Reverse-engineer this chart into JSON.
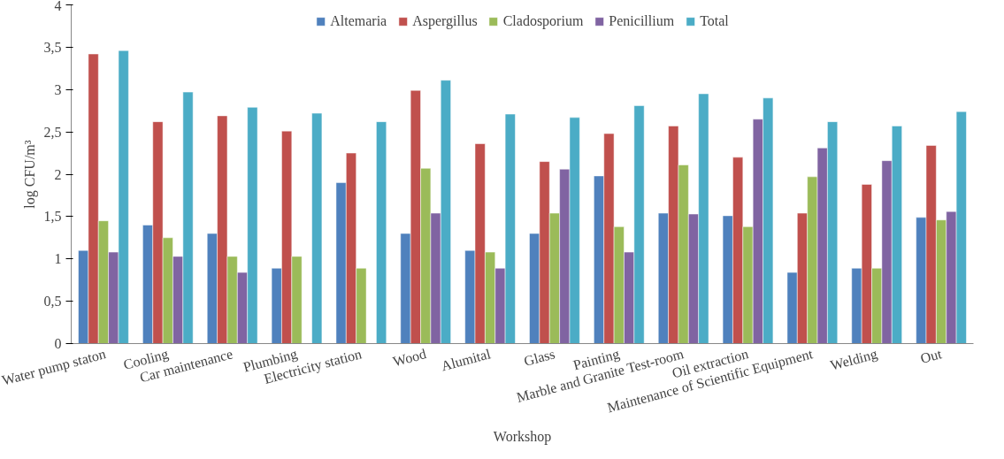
{
  "chart_data": {
    "type": "bar",
    "xlabel": "Workshop",
    "ylabel": "log CFU/m³",
    "categories": [
      "Water pump staton",
      "Cooling",
      "Car maintenance",
      "Plumbing",
      "Electricity station",
      "Wood",
      "Alumital",
      "Glass",
      "Painting",
      "Marble and Granite Test-room",
      "Oil extraction",
      "Maintenance of Scientific Equipment",
      "Welding",
      "Out"
    ],
    "series": [
      {
        "name": "Altemaria",
        "color": "#4f81bd",
        "values": [
          1.1,
          1.4,
          1.3,
          0.89,
          1.9,
          1.3,
          1.1,
          1.3,
          1.98,
          1.54,
          1.51,
          0.84,
          0.89,
          1.49
        ]
      },
      {
        "name": "Aspergillus",
        "color": "#c0504d",
        "values": [
          3.42,
          2.62,
          2.69,
          2.51,
          2.25,
          2.99,
          2.36,
          2.15,
          2.48,
          2.57,
          2.2,
          1.54,
          1.88,
          2.34
        ]
      },
      {
        "name": "Cladosporium",
        "color": "#9bbb59",
        "values": [
          1.45,
          1.25,
          1.03,
          1.03,
          0.89,
          2.07,
          1.08,
          1.54,
          1.38,
          2.11,
          1.38,
          1.97,
          0.89,
          1.46
        ]
      },
      {
        "name": "Penicillium",
        "color": "#8064a2",
        "values": [
          1.08,
          1.03,
          0.84,
          null,
          null,
          1.54,
          0.89,
          2.06,
          1.08,
          1.53,
          2.65,
          2.31,
          2.16,
          1.56
        ]
      },
      {
        "name": "Total",
        "color": "#4bacc6",
        "values": [
          3.46,
          2.97,
          2.79,
          2.72,
          2.62,
          3.11,
          2.71,
          2.67,
          2.81,
          2.95,
          2.9,
          2.62,
          2.57,
          2.74
        ]
      }
    ],
    "ylim": [
      0,
      4
    ],
    "yticks": [
      0,
      {
        "value": 0.5,
        "label": "0,5"
      },
      1,
      {
        "value": 1.5,
        "label": "1,5"
      },
      2,
      {
        "value": 2.5,
        "label": "2,5"
      },
      3,
      {
        "value": 3.5,
        "label": "3,5"
      },
      4
    ],
    "grid": false,
    "legend": "top"
  }
}
